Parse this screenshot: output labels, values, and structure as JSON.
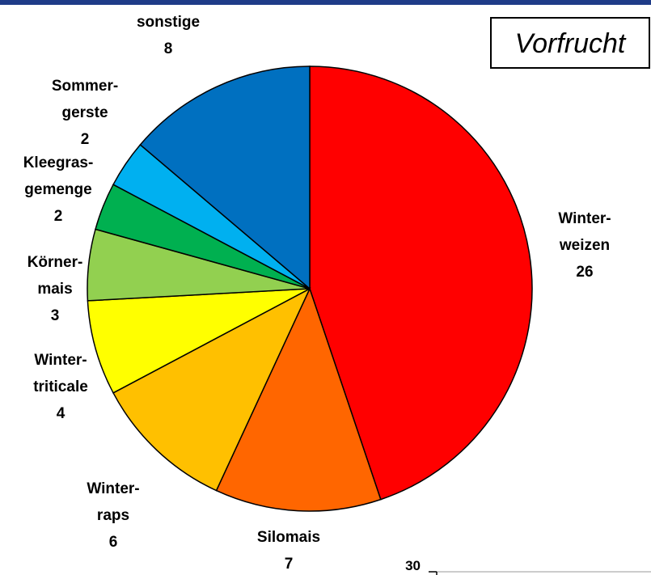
{
  "chart_data": [
    {
      "type": "pie",
      "title": "Vorfrucht",
      "categories": [
        "Winter-\nweizen",
        "Silomais",
        "Winter-\nraps",
        "Winter-\ntriticale",
        "Körner-\nmais",
        "Kleegras-\ngemenge",
        "Sommer-\ngerste",
        "sonstige"
      ],
      "values": [
        26,
        7,
        6,
        4,
        3,
        2,
        2,
        8
      ],
      "colors": [
        "#ff0000",
        "#ff6600",
        "#ffc000",
        "#ffff00",
        "#92d050",
        "#00b050",
        "#00b0f0",
        "#0070c0"
      ]
    },
    {
      "type": "bar",
      "yticks": [
        30
      ]
    }
  ]
}
